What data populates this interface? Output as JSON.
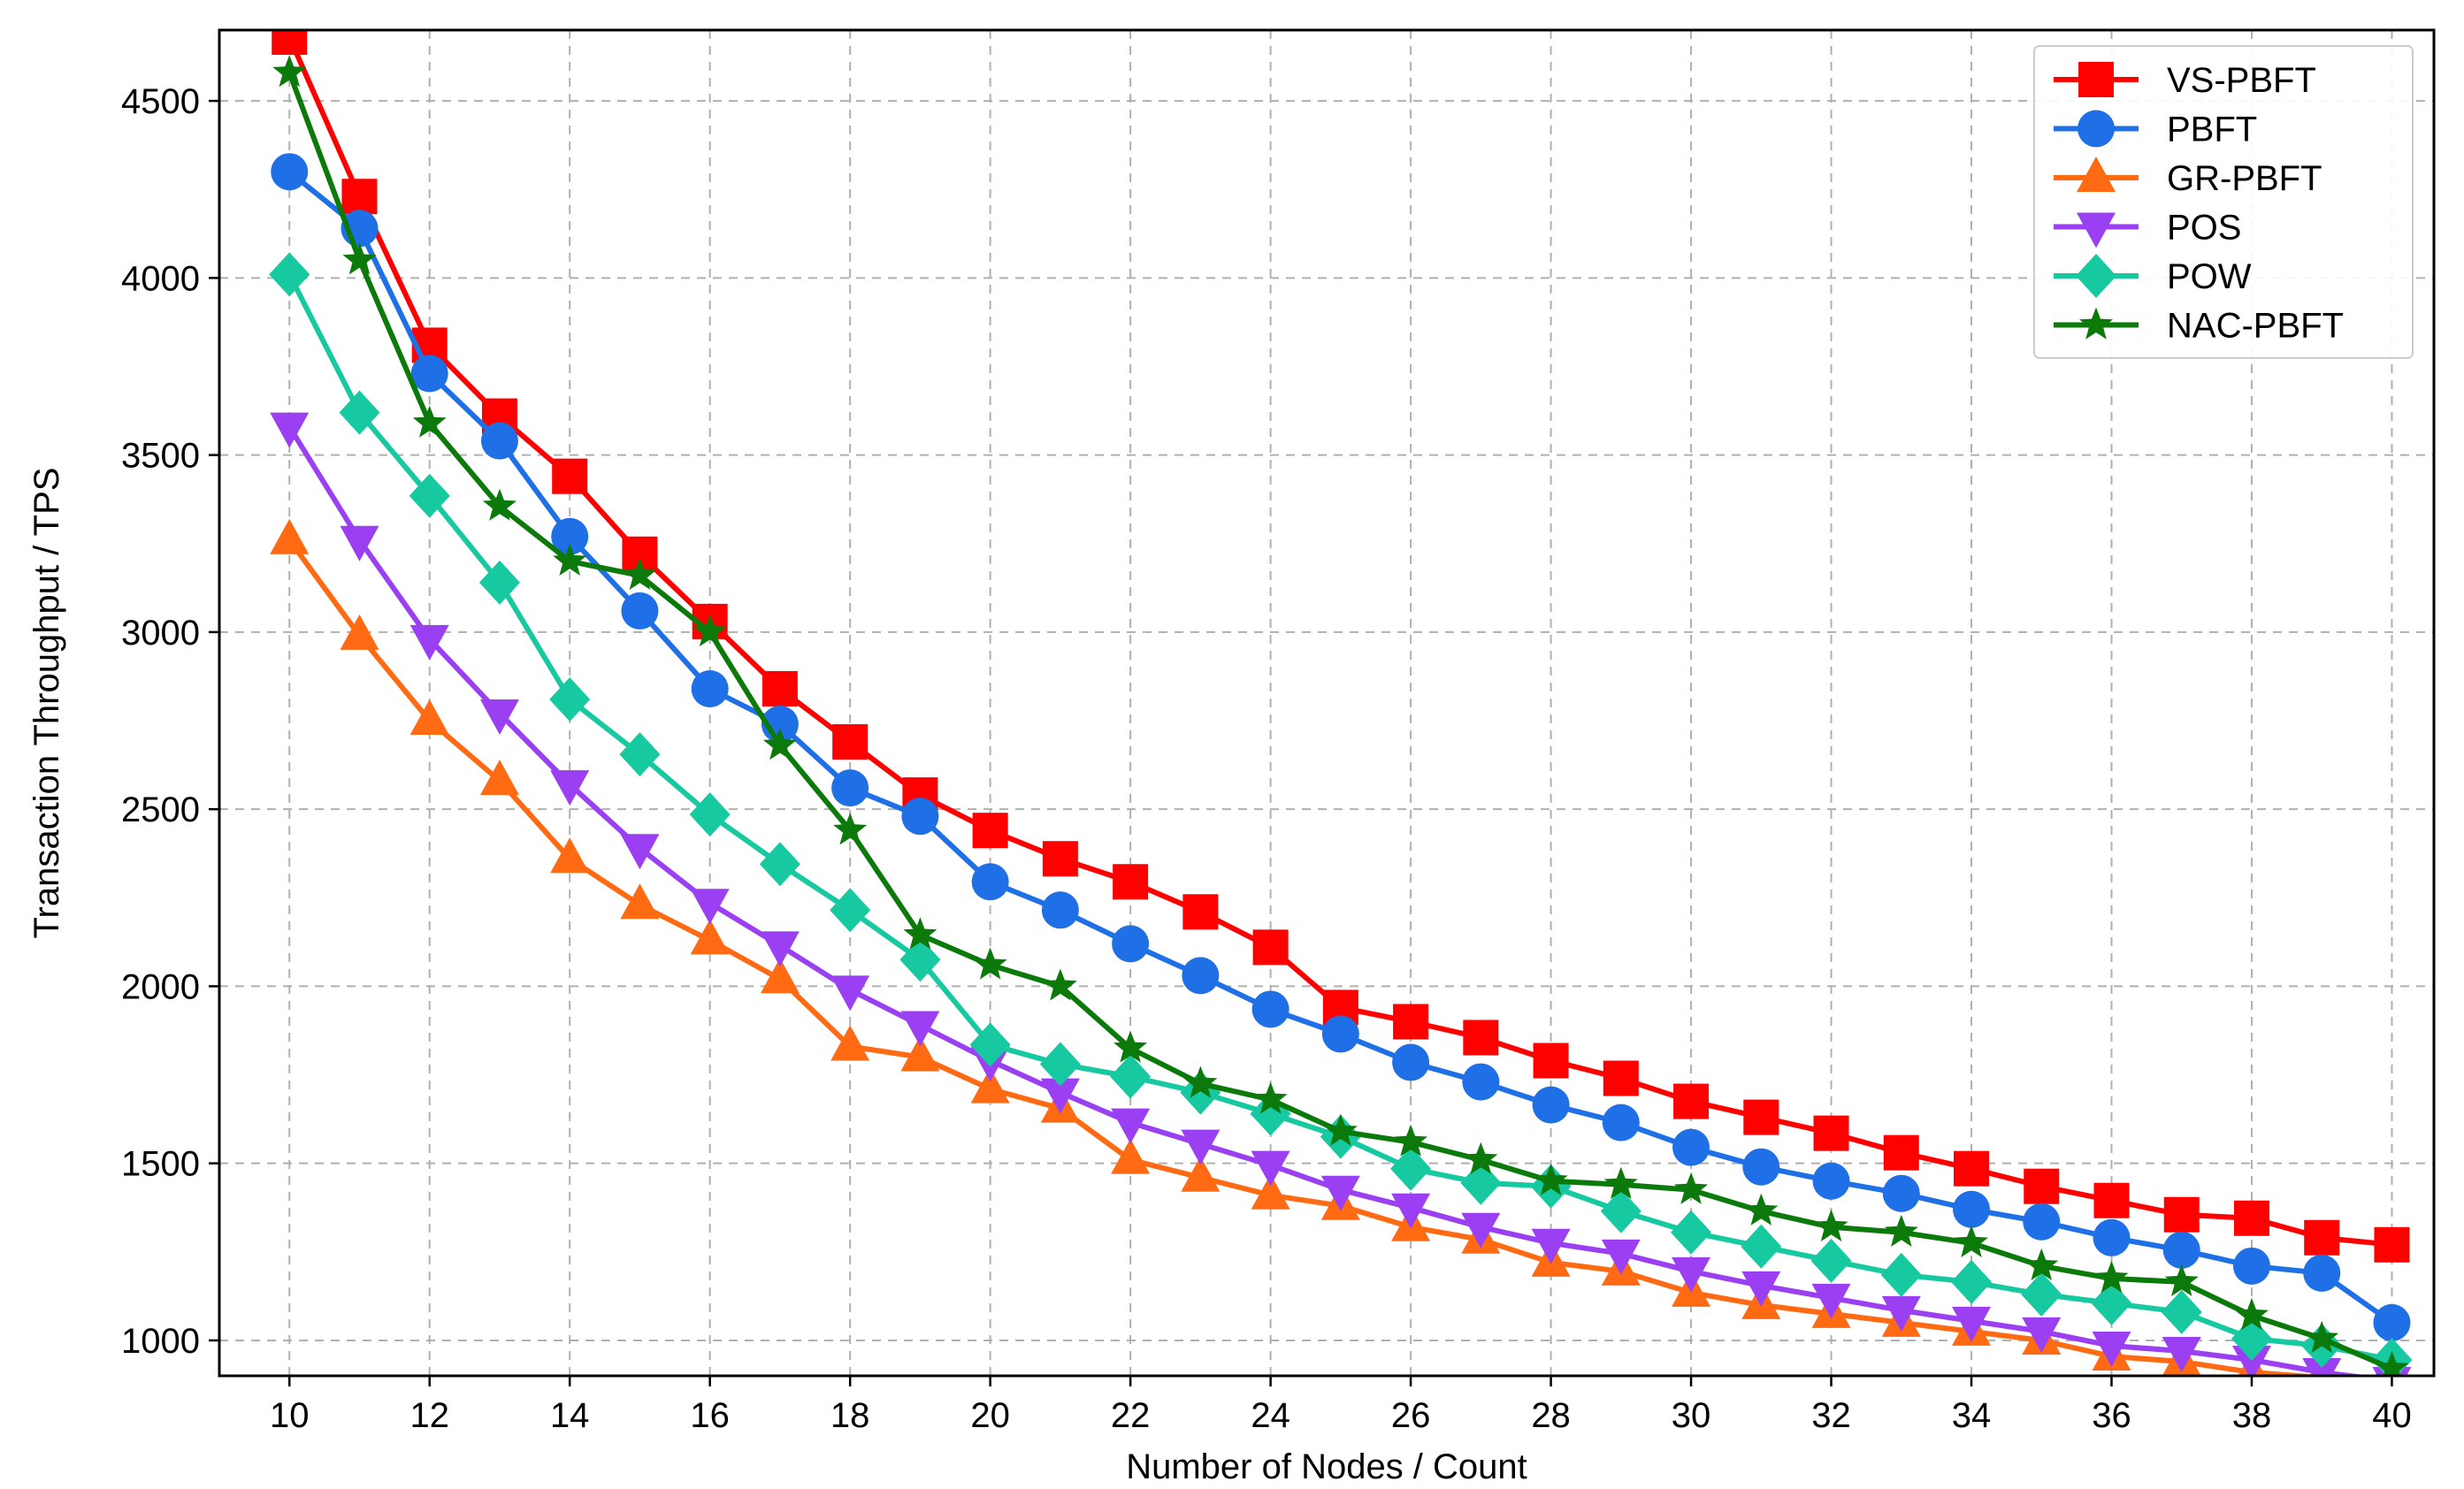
{
  "chart_data": {
    "type": "line",
    "title": "",
    "xlabel": "Number of Nodes / Count",
    "ylabel": "Transaction Throughput / TPS",
    "xlim": [
      9.0,
      40.6
    ],
    "ylim": [
      900,
      4700
    ],
    "xticks": [
      10,
      12,
      14,
      16,
      18,
      20,
      22,
      24,
      26,
      28,
      30,
      32,
      34,
      36,
      38,
      40
    ],
    "yticks": [
      1000,
      1500,
      2000,
      2500,
      3000,
      3500,
      4000,
      4500
    ],
    "grid": true,
    "legend_position": "top-right",
    "x": [
      10,
      11,
      12,
      13,
      14,
      15,
      16,
      17,
      18,
      19,
      20,
      21,
      22,
      23,
      24,
      25,
      26,
      27,
      28,
      29,
      30,
      31,
      32,
      33,
      34,
      35,
      36,
      37,
      38,
      39,
      40
    ],
    "series": [
      {
        "name": "VS-PBFT",
        "color": "#ff0000",
        "marker": "square",
        "values": [
          4680,
          4230,
          3810,
          3610,
          3440,
          3220,
          3030,
          2840,
          2690,
          2540,
          2440,
          2360,
          2295,
          2210,
          2110,
          1940,
          1900,
          1855,
          1790,
          1740,
          1675,
          1630,
          1585,
          1530,
          1485,
          1435,
          1395,
          1355,
          1345,
          1290,
          1270
        ]
      },
      {
        "name": "PBFT",
        "color": "#1f6fe6",
        "marker": "circle",
        "values": [
          4300,
          4140,
          3730,
          3540,
          3270,
          3060,
          2840,
          2740,
          2560,
          2480,
          2295,
          2215,
          2120,
          2030,
          1935,
          1865,
          1785,
          1730,
          1665,
          1615,
          1545,
          1490,
          1450,
          1415,
          1370,
          1335,
          1290,
          1255,
          1210,
          1190,
          1050
        ]
      },
      {
        "name": "GR-PBFT",
        "color": "#ff6a13",
        "marker": "triangle-up",
        "values": [
          3260,
          2990,
          2750,
          2580,
          2360,
          2230,
          2130,
          2020,
          1830,
          1800,
          1710,
          1655,
          1510,
          1460,
          1410,
          1380,
          1320,
          1285,
          1220,
          1195,
          1135,
          1100,
          1075,
          1050,
          1025,
          1000,
          955,
          940,
          910,
          895,
          880
        ]
      },
      {
        "name": "POS",
        "color": "#9b3ff2",
        "marker": "triangle-down",
        "values": [
          3580,
          3260,
          2980,
          2770,
          2570,
          2390,
          2235,
          2115,
          1990,
          1890,
          1790,
          1700,
          1615,
          1555,
          1495,
          1425,
          1375,
          1320,
          1275,
          1245,
          1195,
          1155,
          1120,
          1085,
          1055,
          1025,
          985,
          970,
          945,
          910,
          885
        ]
      },
      {
        "name": "POW",
        "color": "#17c9a0",
        "marker": "diamond",
        "values": [
          4010,
          3620,
          3385,
          3140,
          2810,
          2655,
          2485,
          2345,
          2215,
          2075,
          1835,
          1780,
          1745,
          1700,
          1640,
          1575,
          1485,
          1445,
          1435,
          1365,
          1305,
          1265,
          1225,
          1185,
          1165,
          1130,
          1105,
          1080,
          1005,
          985,
          945
        ]
      },
      {
        "name": "NAC-PBFT",
        "color": "#0b7a0b",
        "marker": "star",
        "values": [
          4580,
          4050,
          3590,
          3355,
          3200,
          3160,
          3000,
          2680,
          2440,
          2145,
          2060,
          2000,
          1825,
          1725,
          1680,
          1590,
          1560,
          1510,
          1450,
          1440,
          1425,
          1365,
          1320,
          1305,
          1275,
          1210,
          1175,
          1165,
          1070,
          1005,
          920
        ]
      }
    ]
  }
}
